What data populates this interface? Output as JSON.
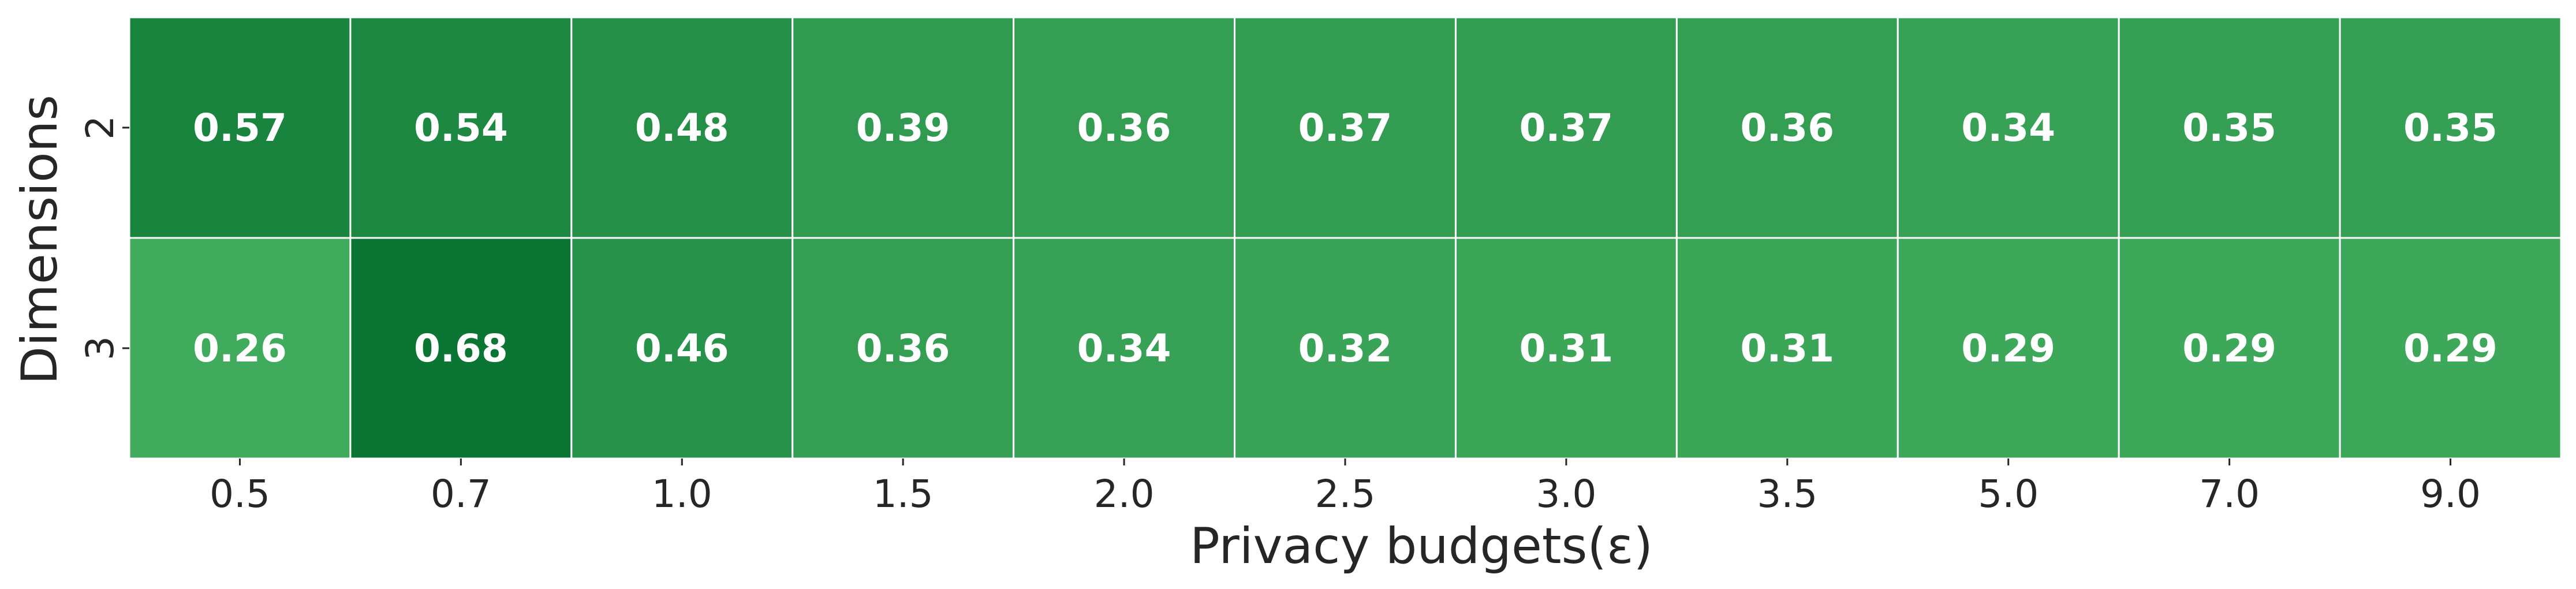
{
  "chart_data": {
    "type": "heatmap",
    "title": "",
    "xlabel": "Privacy budgets(ε)",
    "ylabel": "Dimensions",
    "x_categories": [
      "0.5",
      "0.7",
      "1.0",
      "1.5",
      "2.0",
      "2.5",
      "3.0",
      "3.5",
      "5.0",
      "7.0",
      "9.0"
    ],
    "y_categories": [
      "2",
      "3"
    ],
    "values": [
      [
        0.57,
        0.54,
        0.48,
        0.39,
        0.36,
        0.37,
        0.37,
        0.36,
        0.34,
        0.35,
        0.35
      ],
      [
        0.26,
        0.68,
        0.46,
        0.36,
        0.34,
        0.32,
        0.31,
        0.31,
        0.29,
        0.29,
        0.29
      ]
    ],
    "value_labels": [
      [
        "0.57",
        "0.54",
        "0.48",
        "0.39",
        "0.36",
        "0.37",
        "0.37",
        "0.36",
        "0.34",
        "0.35",
        "0.35"
      ],
      [
        "0.26",
        "0.68",
        "0.46",
        "0.36",
        "0.34",
        "0.32",
        "0.31",
        "0.31",
        "0.29",
        "0.29",
        "0.29"
      ]
    ],
    "colormap": {
      "low_color": "#41ab5d",
      "high_color": "#0b7633",
      "vmin": 0.26,
      "vmax": 0.68
    },
    "cell_border_color": "#ffffff",
    "colorbar": false,
    "grid": false,
    "legend": "none"
  }
}
